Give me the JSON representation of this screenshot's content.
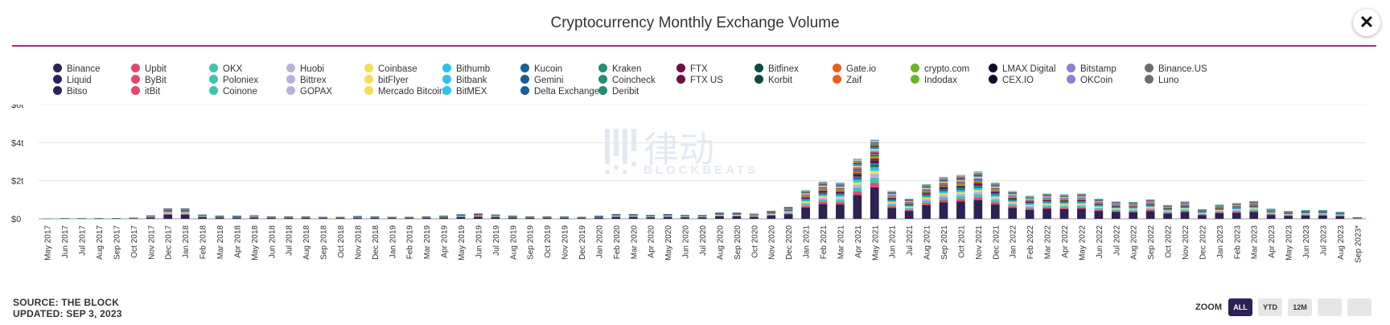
{
  "header": {
    "title": "Cryptocurrency Monthly Exchange Volume",
    "close_icon": "close-icon",
    "close_label": "✕"
  },
  "watermark": {
    "brand": "律动",
    "sub": "BLOCKBEATS"
  },
  "footer": {
    "source": "SOURCE: THE BLOCK",
    "updated": "UPDATED: SEP 3, 2023"
  },
  "zoom": {
    "label": "ZOOM",
    "buttons": [
      "ALL",
      "YTD",
      "12M",
      "",
      ""
    ],
    "active": "ALL"
  },
  "chart_data": {
    "type": "bar",
    "stacked": true,
    "title": "Cryptocurrency Monthly Exchange Volume",
    "xlabel": "",
    "ylabel": "",
    "ylim": [
      0,
      6
    ],
    "yticks": [
      "$0",
      "$2t",
      "$4t",
      "$6t"
    ],
    "grid": true,
    "legend_position": "top",
    "categories": [
      "May 2017",
      "Jun 2017",
      "Jul 2017",
      "Aug 2017",
      "Sep 2017",
      "Oct 2017",
      "Nov 2017",
      "Dec 2017",
      "Jan 2018",
      "Feb 2018",
      "Mar 2018",
      "Apr 2018",
      "May 2018",
      "Jun 2018",
      "Jul 2018",
      "Aug 2018",
      "Sep 2018",
      "Oct 2018",
      "Nov 2018",
      "Dec 2018",
      "Jan 2019",
      "Feb 2019",
      "Mar 2019",
      "Apr 2019",
      "May 2019",
      "Jun 2019",
      "Jul 2019",
      "Aug 2019",
      "Sep 2019",
      "Oct 2019",
      "Nov 2019",
      "Dec 2019",
      "Jan 2020",
      "Feb 2020",
      "Mar 2020",
      "Apr 2020",
      "May 2020",
      "Jun 2020",
      "Jul 2020",
      "Aug 2020",
      "Sep 2020",
      "Oct 2020",
      "Nov 2020",
      "Dec 2020",
      "Jan 2021",
      "Feb 2021",
      "Mar 2021",
      "Apr 2021",
      "May 2021",
      "Jun 2021",
      "Jul 2021",
      "Aug 2021",
      "Sep 2021",
      "Oct 2021",
      "Nov 2021",
      "Dec 2021",
      "Jan 2022",
      "Feb 2022",
      "Mar 2022",
      "Apr 2022",
      "May 2022",
      "Jun 2022",
      "Jul 2022",
      "Aug 2022",
      "Sep 2022",
      "Oct 2022",
      "Nov 2022",
      "Dec 2022",
      "Jan 2023",
      "Feb 2023",
      "Mar 2023",
      "Apr 2023",
      "May 2023",
      "Jun 2023",
      "Jul 2023",
      "Aug 2023",
      "Sep 2023*"
    ],
    "totals": [
      0.02,
      0.03,
      0.03,
      0.04,
      0.04,
      0.06,
      0.18,
      0.55,
      0.55,
      0.22,
      0.17,
      0.16,
      0.18,
      0.12,
      0.12,
      0.12,
      0.1,
      0.1,
      0.15,
      0.12,
      0.1,
      0.1,
      0.12,
      0.17,
      0.24,
      0.28,
      0.22,
      0.17,
      0.12,
      0.12,
      0.12,
      0.1,
      0.16,
      0.25,
      0.25,
      0.2,
      0.25,
      0.2,
      0.2,
      0.33,
      0.33,
      0.27,
      0.42,
      0.62,
      1.5,
      1.95,
      1.9,
      3.15,
      4.15,
      1.45,
      1.05,
      1.82,
      2.2,
      2.3,
      2.48,
      1.9,
      1.45,
      1.2,
      1.32,
      1.28,
      1.32,
      1.05,
      0.9,
      0.88,
      1.02,
      0.72,
      0.9,
      0.5,
      0.74,
      0.82,
      0.92,
      0.52,
      0.4,
      0.45,
      0.45,
      0.36,
      0.08
    ],
    "series_order_bottom_to_top": [
      "Binance",
      "Upbit",
      "OKX",
      "Huobi",
      "Coinbase",
      "Bithumb",
      "Kucoin",
      "Kraken",
      "FTX",
      "Bitfinex",
      "Gate.io",
      "crypto.com",
      "LMAX Digital",
      "Bitstamp",
      "Binance.US",
      "Liquid",
      "ByBit",
      "Poloniex",
      "Bittrex",
      "bitFlyer",
      "Bitbank",
      "Gemini",
      "Coincheck",
      "FTX US",
      "Korbit",
      "Zaif",
      "Indodax",
      "CEX.IO",
      "OKCoin",
      "Luno",
      "Bitso",
      "itBit",
      "Coinone",
      "GOPAX",
      "Mercado Bitcoin",
      "BitMEX",
      "Delta Exchange",
      "Deribit"
    ],
    "series_share": [
      0.42,
      0.06,
      0.07,
      0.05,
      0.04,
      0.05,
      0.03,
      0.02,
      0.04,
      0.02,
      0.02,
      0.02,
      0.01,
      0.01,
      0.01,
      0.01,
      0.02,
      0.01,
      0.01,
      0.01,
      0.01,
      0.01,
      0.01,
      0.01,
      0.01,
      0.01,
      0.005,
      0.005,
      0.005,
      0.005,
      0.005,
      0.005,
      0.005,
      0.005,
      0.005,
      0.01,
      0.005,
      0.005
    ],
    "legend": [
      {
        "name": "Binance",
        "color": "#2e2154"
      },
      {
        "name": "Liquid",
        "color": "#2e2154"
      },
      {
        "name": "Bitso",
        "color": "#2e2154"
      },
      {
        "name": "Upbit",
        "color": "#e5476b"
      },
      {
        "name": "ByBit",
        "color": "#e5476b"
      },
      {
        "name": "itBit",
        "color": "#e5476b"
      },
      {
        "name": "OKX",
        "color": "#45c1b0"
      },
      {
        "name": "Poloniex",
        "color": "#45c1b0"
      },
      {
        "name": "Coinone",
        "color": "#45c1b0"
      },
      {
        "name": "Huobi",
        "color": "#b8b0de"
      },
      {
        "name": "Bittrex",
        "color": "#b8b0de"
      },
      {
        "name": "GOPAX",
        "color": "#b8b0de"
      },
      {
        "name": "Coinbase",
        "color": "#f7dd57"
      },
      {
        "name": "bitFlyer",
        "color": "#f7dd57"
      },
      {
        "name": "Mercado Bitcoin",
        "color": "#f7dd57"
      },
      {
        "name": "Bithumb",
        "color": "#26c6e8"
      },
      {
        "name": "Bitbank",
        "color": "#26c6e8"
      },
      {
        "name": "BitMEX",
        "color": "#26c6e8"
      },
      {
        "name": "Kucoin",
        "color": "#1c5c97"
      },
      {
        "name": "Gemini",
        "color": "#1c5c97"
      },
      {
        "name": "Delta Exchange",
        "color": "#1c5c97"
      },
      {
        "name": "Kraken",
        "color": "#238f75"
      },
      {
        "name": "Coincheck",
        "color": "#238f75"
      },
      {
        "name": "Deribit",
        "color": "#238f75"
      },
      {
        "name": "FTX",
        "color": "#6d0f3f"
      },
      {
        "name": "FTX US",
        "color": "#6d0f3f"
      },
      {
        "name": "Bitfinex",
        "color": "#0e4a44"
      },
      {
        "name": "Korbit",
        "color": "#0e4a44"
      },
      {
        "name": "Gate.io",
        "color": "#ef5b1e"
      },
      {
        "name": "Zaif",
        "color": "#ef5b1e"
      },
      {
        "name": "crypto.com",
        "color": "#69b623"
      },
      {
        "name": "Indodax",
        "color": "#69b623"
      },
      {
        "name": "LMAX Digital",
        "color": "#0d0d26"
      },
      {
        "name": "CEX.IO",
        "color": "#0d0d26"
      },
      {
        "name": "Bitstamp",
        "color": "#8a7fd4"
      },
      {
        "name": "OKCoin",
        "color": "#8a7fd4"
      },
      {
        "name": "Binance.US",
        "color": "#6e6e6e"
      },
      {
        "name": "Luno",
        "color": "#6e6e6e"
      }
    ]
  }
}
